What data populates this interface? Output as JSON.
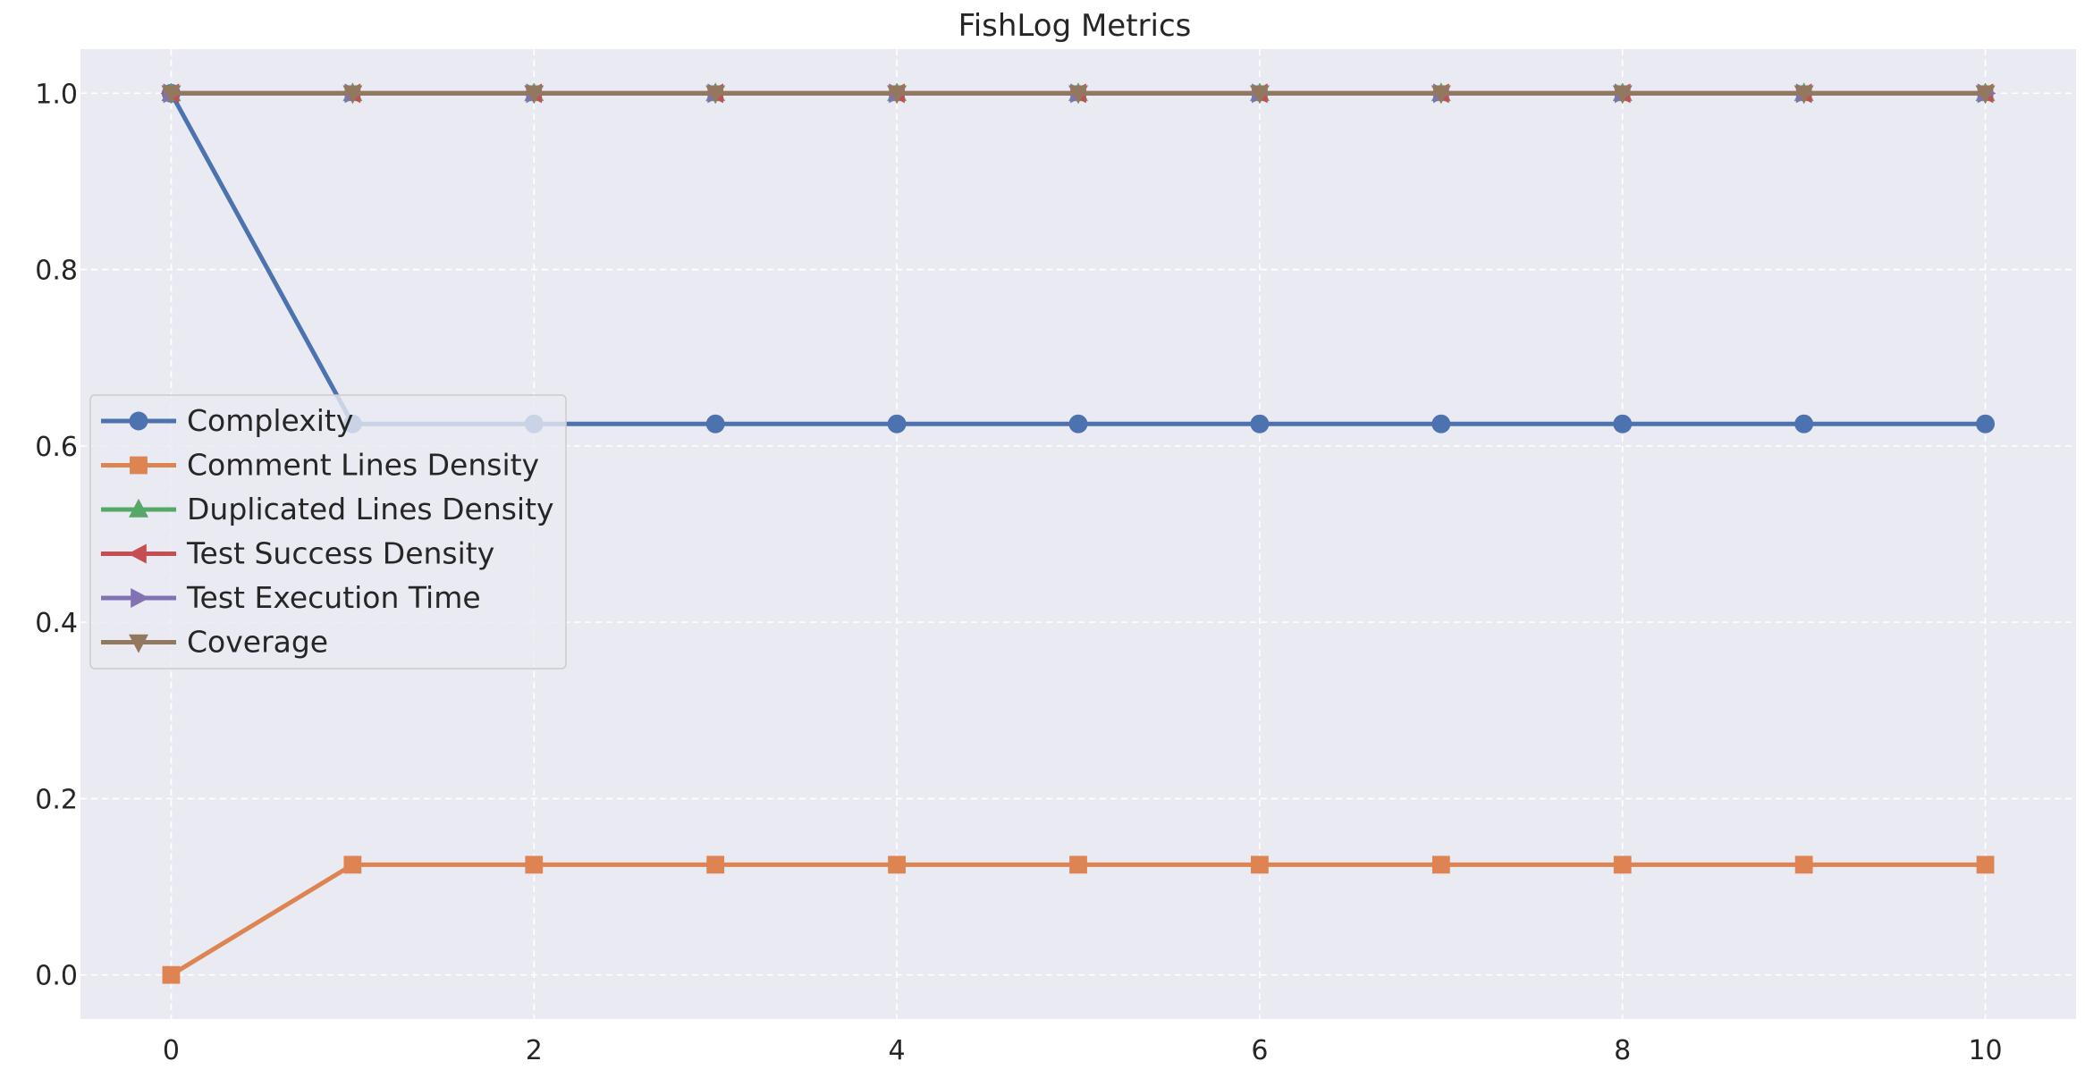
{
  "chart_data": {
    "type": "line",
    "title": "FishLog Metrics",
    "xlabel": "",
    "ylabel": "",
    "x": [
      0,
      1,
      2,
      3,
      4,
      5,
      6,
      7,
      8,
      9,
      10
    ],
    "xlim": [
      -0.5,
      10.5
    ],
    "ylim": [
      -0.05,
      1.05
    ],
    "xticks": [
      0,
      2,
      4,
      6,
      8,
      10
    ],
    "yticks": [
      0.0,
      0.2,
      0.4,
      0.6,
      0.8,
      1.0
    ],
    "ytick_labels": [
      "0.0",
      "0.2",
      "0.4",
      "0.6",
      "0.8",
      "1.0"
    ],
    "grid": true,
    "legend_position": "center-left",
    "series": [
      {
        "name": "Complexity",
        "color": "#4c72b0",
        "marker": "circle",
        "values": [
          1.0,
          0.625,
          0.625,
          0.625,
          0.625,
          0.625,
          0.625,
          0.625,
          0.625,
          0.625,
          0.625
        ]
      },
      {
        "name": "Comment Lines Density",
        "color": "#dd8452",
        "marker": "square",
        "values": [
          0.0,
          0.125,
          0.125,
          0.125,
          0.125,
          0.125,
          0.125,
          0.125,
          0.125,
          0.125,
          0.125
        ]
      },
      {
        "name": "Duplicated Lines Density",
        "color": "#55a868",
        "marker": "triangle-up",
        "values": [
          1.0,
          1.0,
          1.0,
          1.0,
          1.0,
          1.0,
          1.0,
          1.0,
          1.0,
          1.0,
          1.0
        ]
      },
      {
        "name": "Test Success Density",
        "color": "#c44e52",
        "marker": "triangle-left",
        "values": [
          1.0,
          1.0,
          1.0,
          1.0,
          1.0,
          1.0,
          1.0,
          1.0,
          1.0,
          1.0,
          1.0
        ]
      },
      {
        "name": "Test Execution Time",
        "color": "#8172b3",
        "marker": "triangle-right",
        "values": [
          1.0,
          1.0,
          1.0,
          1.0,
          1.0,
          1.0,
          1.0,
          1.0,
          1.0,
          1.0,
          1.0
        ]
      },
      {
        "name": "Coverage",
        "color": "#937860",
        "marker": "triangle-down",
        "values": [
          1.0,
          1.0,
          1.0,
          1.0,
          1.0,
          1.0,
          1.0,
          1.0,
          1.0,
          1.0,
          1.0
        ]
      }
    ]
  }
}
